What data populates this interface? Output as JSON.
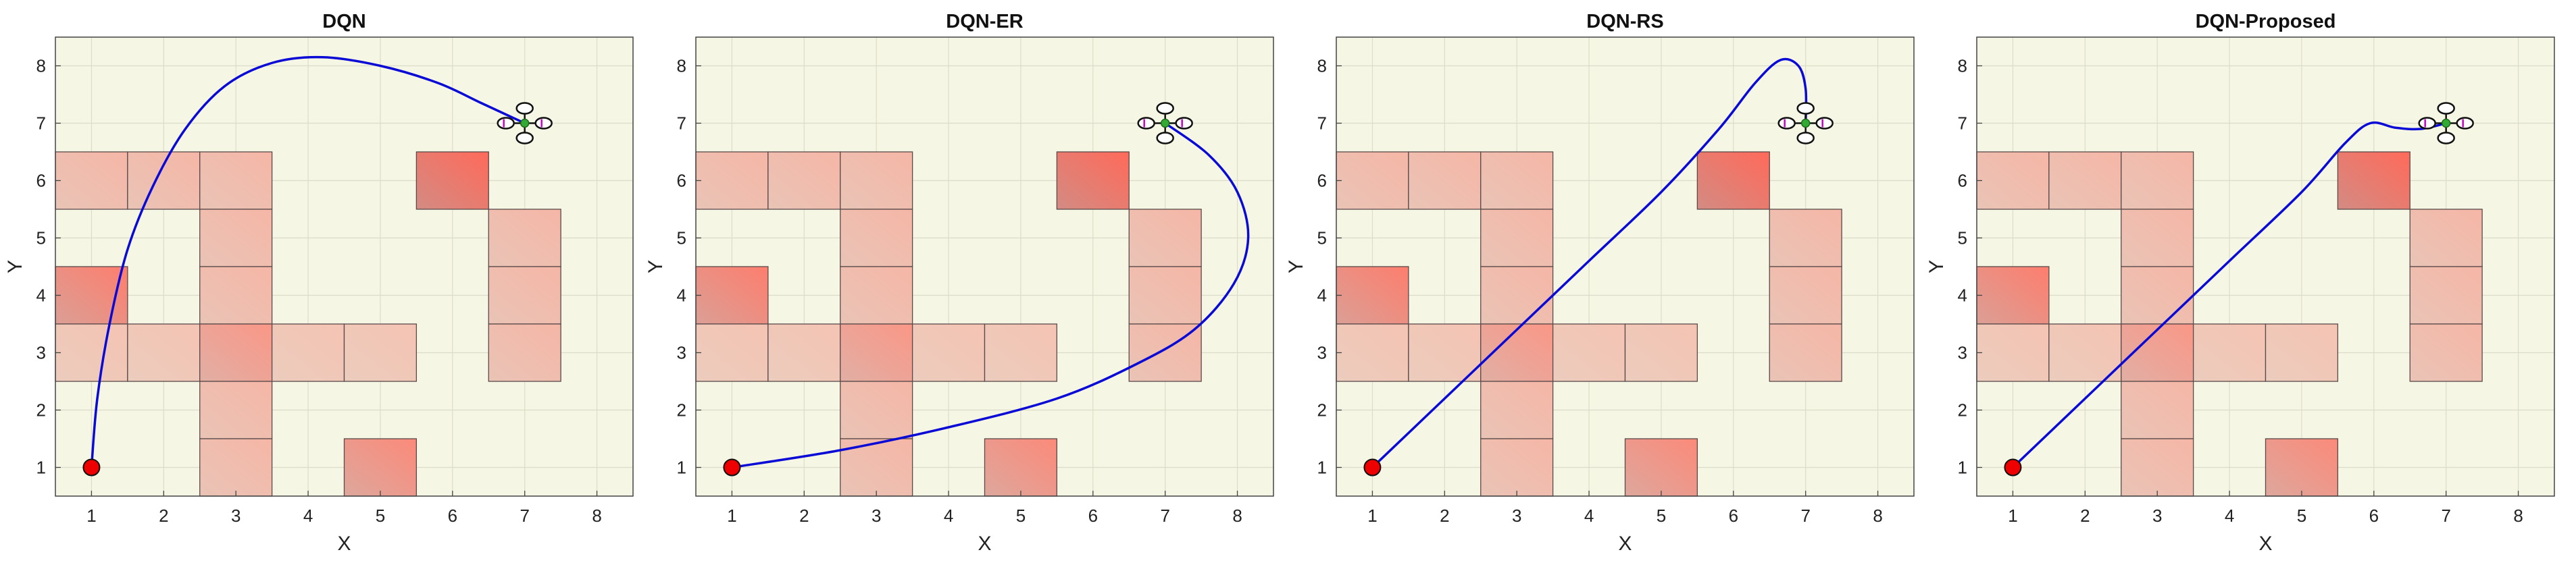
{
  "chart_data": [
    {
      "type": "line",
      "title": "DQN",
      "xlabel": "X",
      "ylabel": "Y",
      "xlim": [
        0.5,
        8.5
      ],
      "ylim": [
        0.5,
        8.5
      ],
      "xticks": [
        1,
        2,
        3,
        4,
        5,
        6,
        7,
        8
      ],
      "yticks": [
        1,
        2,
        3,
        4,
        5,
        6,
        7,
        8
      ],
      "grid": true,
      "start": [
        1,
        1
      ],
      "goal": [
        7,
        7
      ],
      "obstacles": [
        {
          "x": 1,
          "y": 6,
          "intensity": 0.3
        },
        {
          "x": 2,
          "y": 6,
          "intensity": 0.3
        },
        {
          "x": 3,
          "y": 6,
          "intensity": 0.3
        },
        {
          "x": 3,
          "y": 5,
          "intensity": 0.3
        },
        {
          "x": 3,
          "y": 4,
          "intensity": 0.3
        },
        {
          "x": 1,
          "y": 4,
          "intensity": 0.75
        },
        {
          "x": 1,
          "y": 3,
          "intensity": 0.2
        },
        {
          "x": 2,
          "y": 3,
          "intensity": 0.2
        },
        {
          "x": 3,
          "y": 3,
          "intensity": 0.55
        },
        {
          "x": 4,
          "y": 3,
          "intensity": 0.2
        },
        {
          "x": 5,
          "y": 3,
          "intensity": 0.2
        },
        {
          "x": 3,
          "y": 2,
          "intensity": 0.3
        },
        {
          "x": 3,
          "y": 1,
          "intensity": 0.3
        },
        {
          "x": 5,
          "y": 1,
          "intensity": 0.65
        },
        {
          "x": 6,
          "y": 6,
          "intensity": 1.0
        },
        {
          "x": 7,
          "y": 5,
          "intensity": 0.3
        },
        {
          "x": 7,
          "y": 4,
          "intensity": 0.3
        },
        {
          "x": 7,
          "y": 3,
          "intensity": 0.3
        }
      ],
      "path": [
        [
          1,
          1
        ],
        [
          1.08,
          2.2
        ],
        [
          1.25,
          3.5
        ],
        [
          1.5,
          4.8
        ],
        [
          1.85,
          5.9
        ],
        [
          2.3,
          6.9
        ],
        [
          2.85,
          7.65
        ],
        [
          3.5,
          8.05
        ],
        [
          4.2,
          8.15
        ],
        [
          5.0,
          8.0
        ],
        [
          5.8,
          7.7
        ],
        [
          6.4,
          7.35
        ],
        [
          7,
          7
        ]
      ]
    },
    {
      "type": "line",
      "title": "DQN-ER",
      "xlabel": "X",
      "ylabel": "Y",
      "xlim": [
        0.5,
        8.5
      ],
      "ylim": [
        0.5,
        8.5
      ],
      "xticks": [
        1,
        2,
        3,
        4,
        5,
        6,
        7,
        8
      ],
      "yticks": [
        1,
        2,
        3,
        4,
        5,
        6,
        7,
        8
      ],
      "grid": true,
      "start": [
        1,
        1
      ],
      "goal": [
        7,
        7
      ],
      "obstacles": [
        {
          "x": 1,
          "y": 6,
          "intensity": 0.3
        },
        {
          "x": 2,
          "y": 6,
          "intensity": 0.3
        },
        {
          "x": 3,
          "y": 6,
          "intensity": 0.3
        },
        {
          "x": 3,
          "y": 5,
          "intensity": 0.3
        },
        {
          "x": 3,
          "y": 4,
          "intensity": 0.3
        },
        {
          "x": 1,
          "y": 4,
          "intensity": 0.75
        },
        {
          "x": 1,
          "y": 3,
          "intensity": 0.2
        },
        {
          "x": 2,
          "y": 3,
          "intensity": 0.2
        },
        {
          "x": 3,
          "y": 3,
          "intensity": 0.55
        },
        {
          "x": 4,
          "y": 3,
          "intensity": 0.2
        },
        {
          "x": 5,
          "y": 3,
          "intensity": 0.2
        },
        {
          "x": 3,
          "y": 2,
          "intensity": 0.3
        },
        {
          "x": 3,
          "y": 1,
          "intensity": 0.3
        },
        {
          "x": 5,
          "y": 1,
          "intensity": 0.65
        },
        {
          "x": 6,
          "y": 6,
          "intensity": 1.0
        },
        {
          "x": 7,
          "y": 5,
          "intensity": 0.3
        },
        {
          "x": 7,
          "y": 4,
          "intensity": 0.3
        },
        {
          "x": 7,
          "y": 3,
          "intensity": 0.3
        }
      ],
      "path": [
        [
          1,
          1
        ],
        [
          2.5,
          1.3
        ],
        [
          4,
          1.7
        ],
        [
          5.5,
          2.2
        ],
        [
          6.6,
          2.8
        ],
        [
          7.4,
          3.4
        ],
        [
          7.95,
          4.2
        ],
        [
          8.15,
          5.0
        ],
        [
          8.0,
          5.8
        ],
        [
          7.6,
          6.45
        ],
        [
          7,
          7
        ]
      ]
    },
    {
      "type": "line",
      "title": "DQN-RS",
      "xlabel": "X",
      "ylabel": "Y",
      "xlim": [
        0.5,
        8.5
      ],
      "ylim": [
        0.5,
        8.5
      ],
      "xticks": [
        1,
        2,
        3,
        4,
        5,
        6,
        7,
        8
      ],
      "yticks": [
        1,
        2,
        3,
        4,
        5,
        6,
        7,
        8
      ],
      "grid": true,
      "start": [
        1,
        1
      ],
      "goal": [
        7,
        7
      ],
      "obstacles": [
        {
          "x": 1,
          "y": 6,
          "intensity": 0.3
        },
        {
          "x": 2,
          "y": 6,
          "intensity": 0.3
        },
        {
          "x": 3,
          "y": 6,
          "intensity": 0.3
        },
        {
          "x": 3,
          "y": 5,
          "intensity": 0.3
        },
        {
          "x": 3,
          "y": 4,
          "intensity": 0.3
        },
        {
          "x": 1,
          "y": 4,
          "intensity": 0.75
        },
        {
          "x": 1,
          "y": 3,
          "intensity": 0.2
        },
        {
          "x": 2,
          "y": 3,
          "intensity": 0.2
        },
        {
          "x": 3,
          "y": 3,
          "intensity": 0.55
        },
        {
          "x": 4,
          "y": 3,
          "intensity": 0.2
        },
        {
          "x": 5,
          "y": 3,
          "intensity": 0.2
        },
        {
          "x": 3,
          "y": 2,
          "intensity": 0.3
        },
        {
          "x": 3,
          "y": 1,
          "intensity": 0.3
        },
        {
          "x": 5,
          "y": 1,
          "intensity": 0.65
        },
        {
          "x": 6,
          "y": 6,
          "intensity": 1.0
        },
        {
          "x": 7,
          "y": 5,
          "intensity": 0.3
        },
        {
          "x": 7,
          "y": 4,
          "intensity": 0.3
        },
        {
          "x": 7,
          "y": 3,
          "intensity": 0.3
        }
      ],
      "path": [
        [
          1,
          1
        ],
        [
          2,
          2.2
        ],
        [
          3,
          3.4
        ],
        [
          4,
          4.6
        ],
        [
          5,
          5.8
        ],
        [
          5.8,
          6.9
        ],
        [
          6.3,
          7.7
        ],
        [
          6.65,
          8.1
        ],
        [
          6.9,
          8.0
        ],
        [
          7.0,
          7.6
        ],
        [
          7,
          7
        ]
      ]
    },
    {
      "type": "line",
      "title": "DQN-Proposed",
      "xlabel": "X",
      "ylabel": "Y",
      "xlim": [
        0.5,
        8.5
      ],
      "ylim": [
        0.5,
        8.5
      ],
      "xticks": [
        1,
        2,
        3,
        4,
        5,
        6,
        7,
        8
      ],
      "yticks": [
        1,
        2,
        3,
        4,
        5,
        6,
        7,
        8
      ],
      "grid": true,
      "start": [
        1,
        1
      ],
      "goal": [
        7,
        7
      ],
      "obstacles": [
        {
          "x": 1,
          "y": 6,
          "intensity": 0.3
        },
        {
          "x": 2,
          "y": 6,
          "intensity": 0.3
        },
        {
          "x": 3,
          "y": 6,
          "intensity": 0.3
        },
        {
          "x": 3,
          "y": 5,
          "intensity": 0.3
        },
        {
          "x": 3,
          "y": 4,
          "intensity": 0.3
        },
        {
          "x": 1,
          "y": 4,
          "intensity": 0.75
        },
        {
          "x": 1,
          "y": 3,
          "intensity": 0.2
        },
        {
          "x": 2,
          "y": 3,
          "intensity": 0.2
        },
        {
          "x": 3,
          "y": 3,
          "intensity": 0.55
        },
        {
          "x": 4,
          "y": 3,
          "intensity": 0.2
        },
        {
          "x": 5,
          "y": 3,
          "intensity": 0.2
        },
        {
          "x": 3,
          "y": 2,
          "intensity": 0.3
        },
        {
          "x": 3,
          "y": 1,
          "intensity": 0.3
        },
        {
          "x": 5,
          "y": 1,
          "intensity": 0.65
        },
        {
          "x": 6,
          "y": 6,
          "intensity": 1.0
        },
        {
          "x": 7,
          "y": 5,
          "intensity": 0.3
        },
        {
          "x": 7,
          "y": 4,
          "intensity": 0.3
        },
        {
          "x": 7,
          "y": 3,
          "intensity": 0.3
        }
      ],
      "path": [
        [
          1,
          1
        ],
        [
          2,
          2.2
        ],
        [
          3,
          3.4
        ],
        [
          4,
          4.6
        ],
        [
          5,
          5.8
        ],
        [
          5.6,
          6.65
        ],
        [
          5.95,
          7.0
        ],
        [
          6.3,
          6.92
        ],
        [
          6.65,
          6.9
        ],
        [
          7,
          7
        ]
      ]
    }
  ],
  "colors": {
    "plot_background": "#f6f6e4",
    "grid": "#dcdcc9",
    "axis": "#444444",
    "path": "#0a0ad6",
    "start_marker": "#ee0000",
    "obstacle_light": "#f2dccc",
    "obstacle_dark": "#c9706a",
    "goal_center": "#33aa33",
    "rotor_accent": "#cc00cc"
  },
  "icons": {
    "goal": "quadcopter-icon",
    "start": "start-marker-icon"
  }
}
